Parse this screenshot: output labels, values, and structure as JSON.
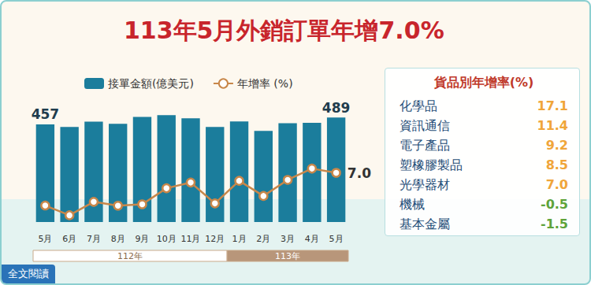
{
  "chart_data": {
    "type": "bar",
    "title": "113年5月外銷訂單年增7.0%",
    "categories": [
      "5月",
      "6月",
      "7月",
      "8月",
      "9月",
      "10月",
      "11月",
      "12月",
      "1月",
      "2月",
      "3月",
      "4月",
      "5月"
    ],
    "periods": [
      {
        "label": "112年",
        "months": 8
      },
      {
        "label": "113年",
        "months": 5
      }
    ],
    "series": [
      {
        "name": "接單金額(億美元)",
        "type": "bar",
        "color": "#1b7d9c",
        "values": [
          457,
          445,
          470,
          460,
          492,
          500,
          485,
          445,
          471,
          426,
          462,
          464,
          489
        ],
        "value_labels": [
          "457",
          null,
          null,
          null,
          null,
          null,
          null,
          null,
          null,
          null,
          null,
          null,
          "489"
        ]
      },
      {
        "name": "年增率 (%)",
        "type": "line",
        "axis": "y2",
        "color": "#c8874a",
        "marker": "circle",
        "values": [
          -17.6,
          -24.9,
          -14.8,
          -17.7,
          -16.7,
          -4.6,
          -0.3,
          -16.0,
          1.0,
          -10.4,
          1.7,
          10.2,
          7.0
        ],
        "value_labels": [
          null,
          null,
          null,
          null,
          null,
          null,
          null,
          null,
          null,
          null,
          null,
          null,
          "7.0"
        ]
      }
    ],
    "ylim": [
      0,
      560
    ],
    "y2lim": [
      -30,
      60
    ],
    "grid": false,
    "legend": "top",
    "tick_labels": "x"
  },
  "panel": {
    "title": "貨品別年增率(%)",
    "rows": [
      {
        "label": "化學品",
        "value": "17.1"
      },
      {
        "label": "資訊通信",
        "value": "11.4"
      },
      {
        "label": "電子產品",
        "value": "9.2"
      },
      {
        "label": "塑橡膠製品",
        "value": "8.5"
      },
      {
        "label": "光學器材",
        "value": "7.0"
      },
      {
        "label": "機械",
        "value": "-0.5"
      },
      {
        "label": "基本金屬",
        "value": "-1.5"
      }
    ]
  },
  "button": "全文閱讀"
}
